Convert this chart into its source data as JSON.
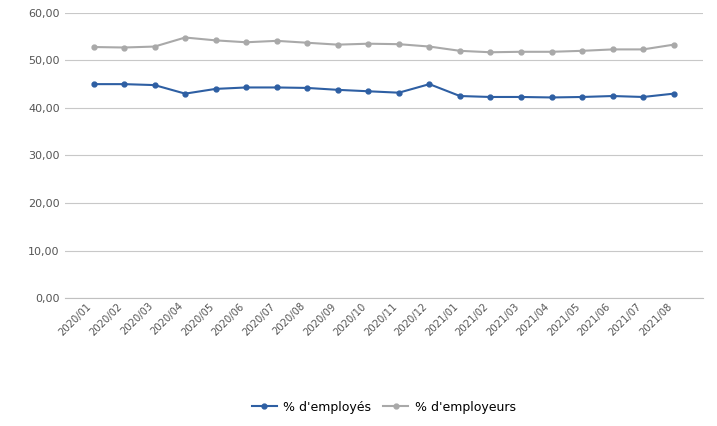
{
  "labels": [
    "2020/01",
    "2020/02",
    "2020/03",
    "2020/04",
    "2020/05",
    "2020/06",
    "2020/07",
    "2020/08",
    "2020/09",
    "2020/10",
    "2020/11",
    "2020/12",
    "2021/01",
    "2021/02",
    "2021/03",
    "2021/04",
    "2021/05",
    "2021/06",
    "2021/07",
    "2021/08"
  ],
  "employes": [
    45.0,
    45.0,
    44.8,
    43.0,
    44.0,
    44.3,
    44.3,
    44.2,
    43.8,
    43.5,
    43.2,
    45.0,
    42.5,
    42.3,
    42.3,
    42.2,
    42.3,
    42.5,
    42.3,
    43.0
  ],
  "employeurs": [
    52.8,
    52.7,
    52.9,
    54.8,
    54.2,
    53.8,
    54.1,
    53.7,
    53.3,
    53.5,
    53.4,
    52.9,
    52.0,
    51.7,
    51.8,
    51.8,
    52.0,
    52.3,
    52.3,
    53.3
  ],
  "employes_color": "#2E5FA3",
  "employeurs_color": "#A9A9A9",
  "ylim": [
    0,
    60
  ],
  "yticks": [
    0.0,
    10.0,
    20.0,
    30.0,
    40.0,
    50.0,
    60.0
  ],
  "legend_employes": "% d'employés",
  "legend_employeurs": "% d'employeurs",
  "background_color": "#FFFFFF",
  "grid_color": "#C8C8C8",
  "border_color": "#C0C0C0"
}
